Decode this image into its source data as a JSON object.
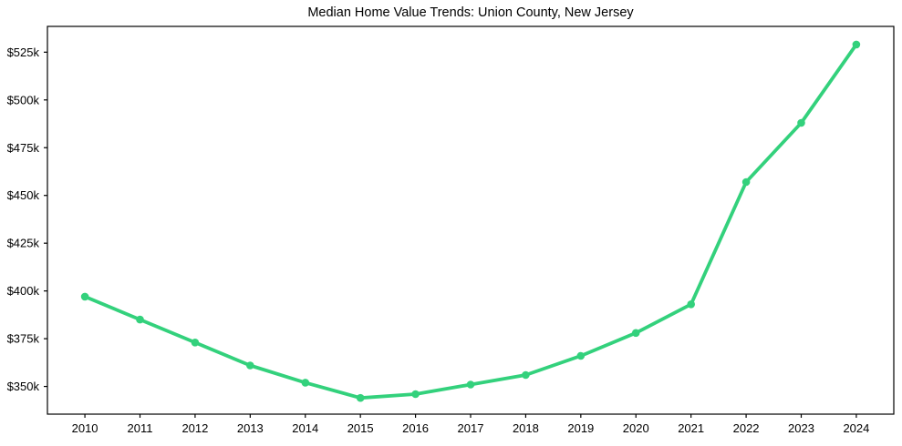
{
  "chart_data": {
    "type": "line",
    "title": "Median Home Value Trends: Union County, New Jersey",
    "xlabel": "",
    "ylabel": "",
    "x": [
      2010,
      2011,
      2012,
      2013,
      2014,
      2015,
      2016,
      2017,
      2018,
      2019,
      2020,
      2021,
      2022,
      2023,
      2024
    ],
    "x_tick_labels": [
      "2010",
      "2011",
      "2012",
      "2013",
      "2014",
      "2015",
      "2016",
      "2017",
      "2018",
      "2019",
      "2020",
      "2021",
      "2022",
      "2023",
      "2024"
    ],
    "series": [
      {
        "name": "Median home value",
        "values": [
          397000,
          385000,
          373000,
          361000,
          352000,
          344000,
          346000,
          351000,
          356000,
          366000,
          378000,
          393000,
          457000,
          488000,
          529000
        ],
        "color": "#33d17c",
        "marker": "circle",
        "line_width": 3.8,
        "marker_radius": 4.3
      }
    ],
    "y_ticks": [
      {
        "value": 350000,
        "label": "$350k"
      },
      {
        "value": 375000,
        "label": "$375k"
      },
      {
        "value": 400000,
        "label": "$400k"
      },
      {
        "value": 425000,
        "label": "$425k"
      },
      {
        "value": 450000,
        "label": "$450k"
      },
      {
        "value": 475000,
        "label": "$475k"
      },
      {
        "value": 500000,
        "label": "$500k"
      },
      {
        "value": 525000,
        "label": "$525k"
      }
    ],
    "ylim": [
      335500,
      538500
    ],
    "xlim": [
      2009.32,
      2024.68
    ],
    "grid": false,
    "legend_position": "none",
    "background_color": "#ffffff",
    "axis_color": "#000000",
    "text_color": "#000000"
  }
}
